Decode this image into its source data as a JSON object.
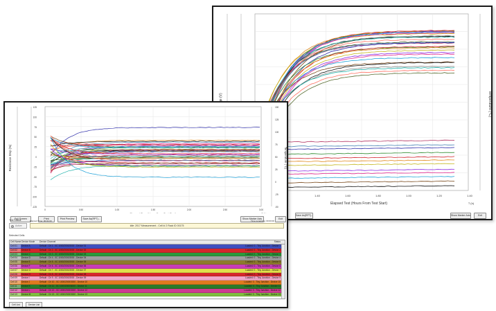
{
  "colors": {
    "palette": [
      "#2a2aa8",
      "#2d8a2d",
      "#d1202a",
      "#e08a1c",
      "#c4b61c",
      "#8a2be2",
      "#e0258f",
      "#1ca0d8",
      "#7a4a1c",
      "#111111",
      "#888888",
      "#20b2aa",
      "#ff6f61",
      "#556b2f",
      "#b03060",
      "#4682b4"
    ]
  },
  "back_window": {
    "x_axis_label": "Elapsed Test (Hours From Test Start)",
    "unit": "T (h)",
    "left_axis_label": "Ty Voltage (V)",
    "right_axis_label": "Temperature (°C)",
    "x_ticks": [
      "1.40",
      "1.60",
      "1.80",
      "1.00",
      "1.20",
      "1.40"
    ],
    "btn_left": "Save As(RPT)...",
    "btn_right1": "Show Marker Axis",
    "btn_right2": "Exit"
  },
  "front_window": {
    "x_axis_label": "Elapsed Time (Hours From Test Start)",
    "unit": "T (h)",
    "left_axis_label": "Resistance Drop (%)",
    "right_axis_label": "Temperature (°C)",
    "x_ticks": [
      "0",
      "0.50",
      "1.00",
      "1.50",
      "2.00",
      "2.50",
      "3.00"
    ],
    "y_ticks": [
      "125",
      "100",
      "75",
      "50",
      "25",
      "0",
      "-25",
      "-50",
      "-75",
      "-100",
      "-125"
    ],
    "right_ticks": [
      "150",
      "125",
      "100",
      "75",
      "50",
      "25",
      "0",
      "-25",
      "-50"
    ],
    "buttons": [
      "Full Screen",
      "Print",
      "Print Preview",
      "Save As(RPT)..."
    ],
    "btn_right1": "Show Marker Axis",
    "btn_right2": "Exit",
    "test_status_label": "Test Status",
    "test_status_left": "Elapsed Time: 00:01:00",
    "test_status_right": "Time remaining: 00:00:00",
    "status_message": "Idle: 2017 Measurement - Cell Id 2 Rack ID 00175",
    "led_label": "Active",
    "selected_cells_label": "Selected Cells",
    "table_headers": [
      "Cell Name",
      "Device Mode",
      "Device Channel",
      "Status"
    ],
    "rows": [
      {
        "name": "Cell 01",
        "mode": "Device A",
        "channel": "Default : Ch 1 - 0C 1000/2000/3000 - Device 01",
        "status": "Loaded: 0 - Tiny Junction - Device 1"
      },
      {
        "name": "Cell 02",
        "mode": "Device B",
        "channel": "Default : Ch 2 - 0C 1000/2000/3000 - Device 02",
        "status": "Loaded: 0 - Tiny Junction - Device 2"
      },
      {
        "name": "Cell 03",
        "mode": "Device C",
        "channel": "Default : Ch 3 - 0C 1000/2000/3000 - Device 03",
        "status": "Loaded: 0 - Tiny Junction - Device 3"
      },
      {
        "name": "Cell 04",
        "mode": "Device D",
        "channel": "Default : Ch 4 - 0C 1000/2000/3000 - Device 04",
        "status": "Loaded: 0 - Tiny Junction - Device 4"
      },
      {
        "name": "Cell 05",
        "mode": "Device E",
        "channel": "Default : Ch 5 - 0C 1000/2000/3000 - Device 05",
        "status": "Loaded: 0 - Tiny Junction - Device 5"
      },
      {
        "name": "Cell 06",
        "mode": "Device F",
        "channel": "Default : Ch 6 - 0C 1000/2000/3000 - Device 06",
        "status": "Loaded: 0 - Tiny Junction - Device 6"
      },
      {
        "name": "Cell 07",
        "mode": "Device G",
        "channel": "Default : Ch 7 - 0C 1000/2000/3000 - Device 07",
        "status": "Loaded: 0 - Tiny Junction - Device 7"
      },
      {
        "name": "Cell 08",
        "mode": "Device H",
        "channel": "Default : Ch 8 - 0C 1000/2000/3000 - Device 08",
        "status": "Loaded: 0 - Tiny Junction - Device 8"
      },
      {
        "name": "Cell 09",
        "mode": "Device I",
        "channel": "Default : Ch 9 - 0C 1000/2000/3000 - Device 09",
        "status": "Loaded: 0 - Tiny Junction - Device 9"
      },
      {
        "name": "Cell 10",
        "mode": "Device J",
        "channel": "Default : Ch 10 - 0C 1000/2000/3000 - Device 10",
        "status": "Loaded: 0 - Tiny Junction - Device 10"
      },
      {
        "name": "Cell 11",
        "mode": "Device K",
        "channel": "Default : Ch 11 - 0C 1000/2000/3000 - Device 11",
        "status": "Loaded: 0 - Tiny Junction - Device 11"
      },
      {
        "name": "Cell 12",
        "mode": "Device L",
        "channel": "Default : Ch 12 - 0C 1000/2000/3000 - Device 12",
        "status": "Loaded: 0 - Tiny Junction - Device 12"
      },
      {
        "name": "Cell 13",
        "mode": "Device M",
        "channel": "Default : Ch 13 - 0C 1000/2000/3000 - Device 13",
        "status": "Loaded: 0 - Tiny Junction - Device 13"
      }
    ],
    "row_colors": [
      "#3f4fbf",
      "#d6262b",
      "#2b9a3b",
      "#9e9e9e",
      "#8d7b2d",
      "#c93cb8",
      "#e0e04a",
      "#d6262b",
      "#f0a6c8",
      "#e07a1f",
      "#2a7a2a",
      "#cf3b92",
      "#7fbf3f"
    ],
    "tab_cells": "Cell List",
    "tab_graph": "Device List"
  }
}
